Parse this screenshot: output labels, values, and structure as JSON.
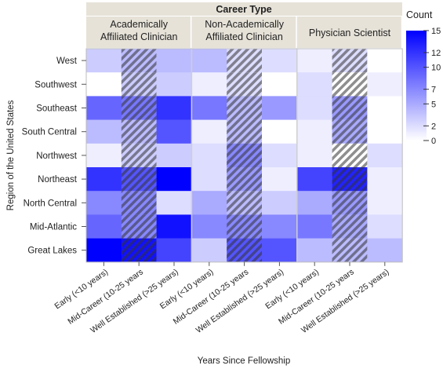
{
  "chart_data": {
    "type": "heatmap",
    "title": "",
    "facet_title": "Career Type",
    "facets": [
      {
        "label_lines": [
          "Academically",
          "Affiliated Clinician"
        ]
      },
      {
        "label_lines": [
          "Non-Academically",
          "Affiliated Clinician"
        ]
      },
      {
        "label_lines": [
          "Physician Scientist"
        ]
      }
    ],
    "x_categories": [
      "Early (<10 years)",
      "Mid-Career (10-25 years",
      "Well Established (>25 years)"
    ],
    "xlabel": "Years Since Fellowship",
    "ylabel": "Region of the United States",
    "y_categories": [
      "West",
      "Southwest",
      "Southeast",
      "South Central",
      "Northwest",
      "Northeast",
      "North Central",
      "Mid-Atlantic",
      "Great Lakes"
    ],
    "legend": {
      "title": "Count",
      "range": [
        0,
        15
      ],
      "ticks": [
        15,
        12,
        10,
        7,
        5,
        2,
        0
      ],
      "color_low": "#ffffff",
      "color_high": "#0000ff"
    },
    "hatched_column": "Mid-Career (10-25 years",
    "values": [
      [
        3,
        4,
        4,
        4,
        2,
        2,
        1,
        2,
        0
      ],
      [
        0,
        3,
        3,
        1,
        2,
        0,
        2,
        0,
        1
      ],
      [
        9,
        8,
        12,
        8,
        4,
        6,
        2,
        6,
        0
      ],
      [
        4,
        4,
        10,
        1,
        4,
        0,
        1,
        5,
        0
      ],
      [
        1,
        3,
        3,
        2,
        7,
        2,
        1,
        0,
        2
      ],
      [
        12,
        10,
        15,
        2,
        6,
        1,
        11,
        13,
        1
      ],
      [
        7,
        7,
        2,
        5,
        4,
        3,
        5,
        6,
        1
      ],
      [
        9,
        7,
        14,
        7,
        7,
        7,
        8,
        5,
        2
      ],
      [
        15,
        14,
        11,
        3,
        10,
        10,
        4,
        4,
        4
      ]
    ]
  }
}
